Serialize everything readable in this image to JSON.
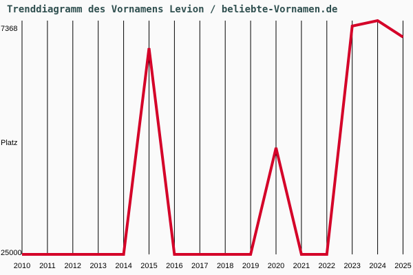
{
  "title": "Trenddiagramm des Vornamens Levion / beliebte-Vornamen.de",
  "y_axis": {
    "top_label": "7368",
    "middle_label": "Platz",
    "bottom_label": "25000"
  },
  "colors": {
    "line": "#d40028",
    "title": "#2f4f4f",
    "grid": "#000000",
    "background": "#fafafa"
  },
  "chart_data": {
    "type": "line",
    "title": "Trenddiagramm des Vornamens Levion / beliebte-Vornamen.de",
    "xlabel": "",
    "ylabel": "Platz",
    "ylim": [
      25000,
      7368
    ],
    "y_inverted": true,
    "grid": {
      "vertical": true,
      "horizontal": false
    },
    "categories": [
      "2010",
      "2011",
      "2012",
      "2013",
      "2014",
      "2015",
      "2016",
      "2017",
      "2018",
      "2019",
      "2020",
      "2021",
      "2022",
      "2023",
      "2024",
      "2025"
    ],
    "series": [
      {
        "name": "Levion",
        "values": [
          25000,
          25000,
          25000,
          25000,
          25000,
          9440,
          25000,
          25000,
          25000,
          25000,
          16960,
          25000,
          25000,
          7780,
          7368,
          8610
        ]
      }
    ]
  }
}
